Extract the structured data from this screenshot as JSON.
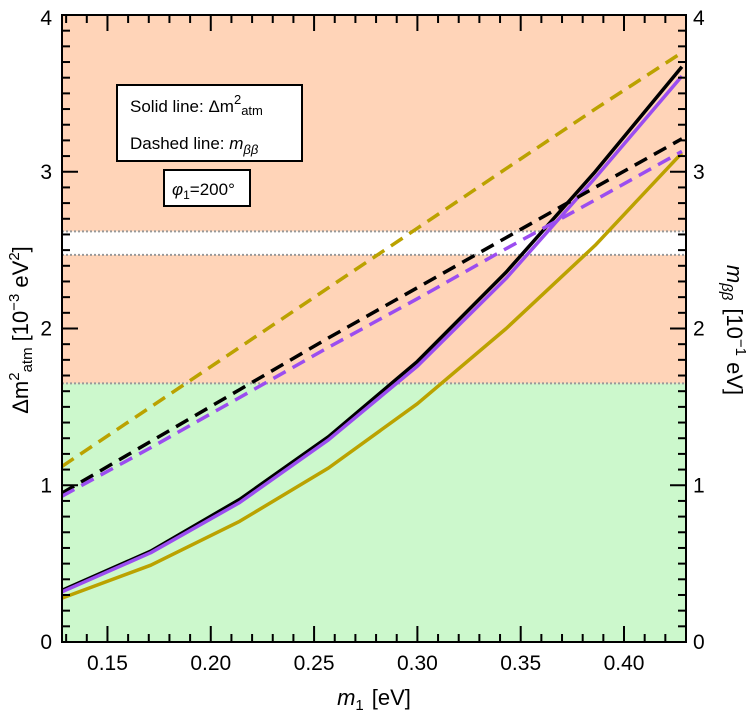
{
  "chart_data": {
    "type": "line",
    "xlabel": {
      "main": "m",
      "sub": "1",
      "unit": "[eV]"
    },
    "ylabel_left": {
      "pre": "Δm",
      "sup": "2",
      "sub": "atm",
      "unit_open": "[10",
      "exp": "−3",
      "unit_mid": " eV",
      "exp2": "2",
      "unit_close": "]"
    },
    "ylabel_right": {
      "main": "m",
      "sub": "ββ",
      "unit_open": "[10",
      "exp": "−1",
      "unit_close": " eV]"
    },
    "xlim": [
      0.128,
      0.43
    ],
    "ylim": [
      0,
      4
    ],
    "x_ticks": [
      0.15,
      0.2,
      0.25,
      0.3,
      0.35,
      0.4
    ],
    "x_tick_labels": [
      "0.15",
      "0.20",
      "0.25",
      "0.30",
      "0.35",
      "0.40"
    ],
    "y_ticks": [
      0,
      1,
      2,
      3,
      4
    ],
    "y_tick_labels": [
      "0",
      "1",
      "2",
      "3",
      "4"
    ],
    "bands": [
      {
        "name": "allowed-region",
        "from": 0,
        "to": 1.65,
        "color": "#ccf8cc"
      },
      {
        "name": "excluded-lower",
        "from": 1.65,
        "to": 2.47,
        "color": "#ffd4b8"
      },
      {
        "name": "gap",
        "from": 2.47,
        "to": 2.62,
        "color": "#ffffff"
      },
      {
        "name": "excluded-upper",
        "from": 2.62,
        "to": 4.0,
        "color": "#ffd4b8"
      }
    ],
    "band_boundaries": [
      1.65,
      2.47,
      2.62
    ],
    "legend": {
      "solid": "Solid line: ",
      "dashed": "Dashed line: ",
      "phase_label": "=200°"
    },
    "series": [
      {
        "name": "black-solid",
        "color": "#000000",
        "dash": false,
        "x": [
          0.128,
          0.171,
          0.214,
          0.257,
          0.3,
          0.343,
          0.386,
          0.428
        ],
        "y": [
          0.33,
          0.58,
          0.91,
          1.31,
          1.79,
          2.36,
          3.0,
          3.67
        ]
      },
      {
        "name": "purple-solid",
        "color": "#9b4df0",
        "dash": false,
        "x": [
          0.128,
          0.171,
          0.214,
          0.257,
          0.3,
          0.343,
          0.386,
          0.428
        ],
        "y": [
          0.32,
          0.57,
          0.89,
          1.29,
          1.76,
          2.32,
          2.96,
          3.61
        ]
      },
      {
        "name": "gold-solid",
        "color": "#bba200",
        "dash": false,
        "x": [
          0.128,
          0.171,
          0.214,
          0.257,
          0.3,
          0.343,
          0.386,
          0.428
        ],
        "y": [
          0.28,
          0.49,
          0.77,
          1.11,
          1.52,
          2.0,
          2.53,
          3.12
        ]
      },
      {
        "name": "black-dashed",
        "color": "#000000",
        "dash": true,
        "x": [
          0.128,
          0.171,
          0.214,
          0.257,
          0.3,
          0.343,
          0.386,
          0.428
        ],
        "y": [
          0.95,
          1.28,
          1.61,
          1.94,
          2.26,
          2.58,
          2.9,
          3.21
        ]
      },
      {
        "name": "purple-dashed",
        "color": "#9b4df0",
        "dash": true,
        "x": [
          0.128,
          0.171,
          0.214,
          0.257,
          0.3,
          0.343,
          0.386,
          0.428
        ],
        "y": [
          0.93,
          1.24,
          1.56,
          1.88,
          2.19,
          2.51,
          2.82,
          3.13
        ]
      },
      {
        "name": "gold-dashed",
        "color": "#bba200",
        "dash": true,
        "x": [
          0.128,
          0.171,
          0.214,
          0.257,
          0.3,
          0.343,
          0.386,
          0.428
        ],
        "y": [
          1.12,
          1.5,
          1.88,
          2.26,
          2.64,
          3.02,
          3.4,
          3.76
        ]
      }
    ]
  }
}
